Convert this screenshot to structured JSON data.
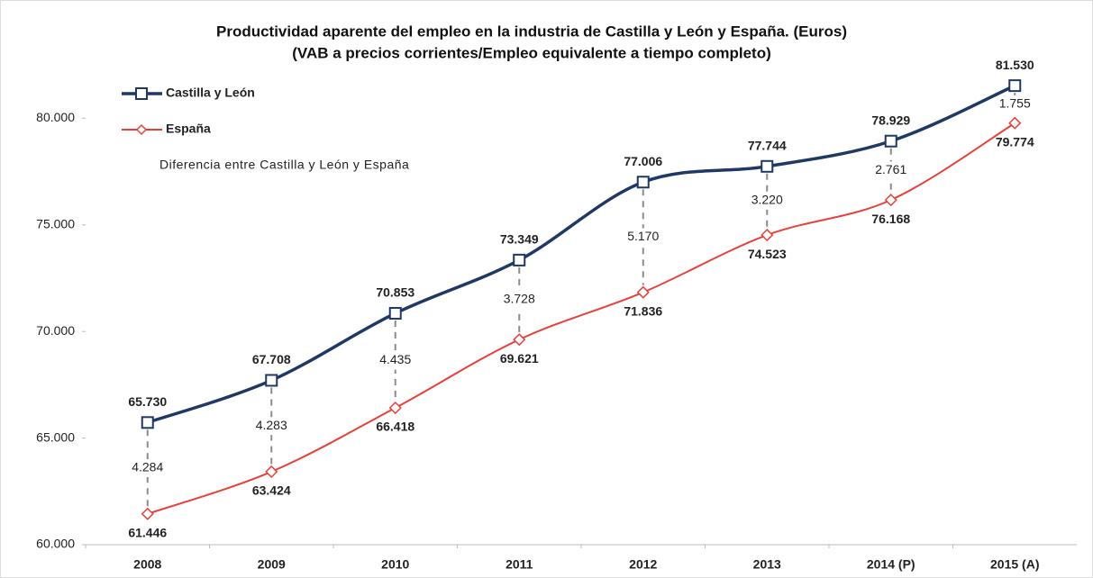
{
  "chart_data": {
    "type": "line",
    "title": "Productividad aparente del empleo en la industria de Castilla y León y España. (Euros)",
    "subtitle": "(VAB a precios corrientes/Empleo equivalente a tiempo completo)",
    "categories": [
      "2008",
      "2009",
      "2010",
      "2011",
      "2012",
      "2013",
      "2014 (P)",
      "2015 (A)"
    ],
    "series": [
      {
        "name": "Castilla y León",
        "color": "#1f3864",
        "values": [
          65730,
          67708,
          70853,
          73349,
          77006,
          77744,
          78929,
          81530
        ],
        "value_labels": [
          "65.730",
          "67.708",
          "70.853",
          "73.349",
          "77.006",
          "77.744",
          "78.929",
          "81.530"
        ]
      },
      {
        "name": "España",
        "color": "#e8403a",
        "values": [
          61446,
          63424,
          66418,
          69621,
          71836,
          74523,
          76168,
          79774
        ],
        "value_labels": [
          "61.446",
          "63.424",
          "66.418",
          "69.621",
          "71.836",
          "74.523",
          "76.168",
          "79.774"
        ]
      }
    ],
    "differences": {
      "name": "Diferencia entre Castilla y León y España",
      "color": "#8c8c8c",
      "values": [
        4284,
        4283,
        4435,
        3728,
        5170,
        3220,
        2761,
        1755
      ],
      "value_labels": [
        "4.284",
        "4.283",
        "4.435",
        "3.728",
        "5.170",
        "3.220",
        "2.761",
        "1.755"
      ]
    },
    "ylim": [
      60000,
      82000
    ],
    "yticks": [
      {
        "value": 60000,
        "label": "60.000"
      },
      {
        "value": 65000,
        "label": "65.000"
      },
      {
        "value": 70000,
        "label": "70.000"
      },
      {
        "value": 75000,
        "label": "75.000"
      },
      {
        "value": 80000,
        "label": "80.000"
      }
    ],
    "grid": false,
    "legend": "top-left"
  }
}
